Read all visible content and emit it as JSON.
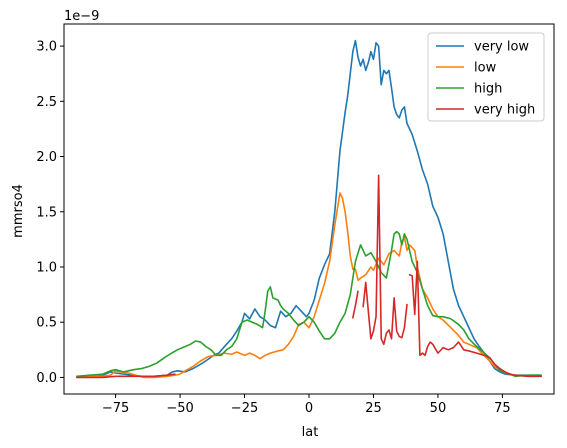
{
  "chart_data": {
    "type": "line",
    "xlabel": "lat",
    "ylabel": "mmrso4",
    "offset_text": "1e−9",
    "xlim": [
      -95,
      95
    ],
    "ylim": [
      -0.15,
      3.2
    ],
    "y_scale_factor": 1e-09,
    "xticks": [
      -75,
      -50,
      -25,
      0,
      25,
      50,
      75
    ],
    "xtick_labels": [
      "−75",
      "−50",
      "−25",
      "0",
      "25",
      "50",
      "75"
    ],
    "yticks": [
      0.0,
      0.5,
      1.0,
      1.5,
      2.0,
      2.5,
      3.0
    ],
    "ytick_labels": [
      "0.0",
      "0.5",
      "1.0",
      "1.5",
      "2.0",
      "2.5",
      "3.0"
    ],
    "grid": false,
    "legend_position": "top-right",
    "series": [
      {
        "name": "very low",
        "color": "#1f77b4",
        "points": [
          [
            -90,
            0.01
          ],
          [
            -85,
            0.01
          ],
          [
            -80,
            0.02
          ],
          [
            -77,
            0.05
          ],
          [
            -75,
            0.04
          ],
          [
            -72,
            0.03
          ],
          [
            -68,
            0.02
          ],
          [
            -65,
            0.01
          ],
          [
            -60,
            0.01
          ],
          [
            -55,
            0.02
          ],
          [
            -53,
            0.05
          ],
          [
            -51,
            0.06
          ],
          [
            -48,
            0.05
          ],
          [
            -45,
            0.08
          ],
          [
            -42,
            0.12
          ],
          [
            -40,
            0.15
          ],
          [
            -37,
            0.2
          ],
          [
            -35,
            0.22
          ],
          [
            -32,
            0.3
          ],
          [
            -30,
            0.35
          ],
          [
            -28,
            0.42
          ],
          [
            -26,
            0.5
          ],
          [
            -25,
            0.58
          ],
          [
            -23,
            0.53
          ],
          [
            -21,
            0.62
          ],
          [
            -19,
            0.55
          ],
          [
            -17,
            0.52
          ],
          [
            -15,
            0.47
          ],
          [
            -13,
            0.45
          ],
          [
            -11,
            0.6
          ],
          [
            -9,
            0.55
          ],
          [
            -7,
            0.58
          ],
          [
            -5,
            0.65
          ],
          [
            -3,
            0.6
          ],
          [
            -1,
            0.55
          ],
          [
            0,
            0.58
          ],
          [
            2,
            0.7
          ],
          [
            4,
            0.9
          ],
          [
            6,
            1.02
          ],
          [
            8,
            1.12
          ],
          [
            10,
            1.5
          ],
          [
            12,
            2.05
          ],
          [
            14,
            2.4
          ],
          [
            15,
            2.55
          ],
          [
            16,
            2.75
          ],
          [
            17,
            2.95
          ],
          [
            18,
            3.05
          ],
          [
            19,
            2.9
          ],
          [
            20,
            2.82
          ],
          [
            21,
            2.88
          ],
          [
            22,
            2.78
          ],
          [
            23,
            2.85
          ],
          [
            24,
            2.95
          ],
          [
            25,
            2.88
          ],
          [
            26,
            3.03
          ],
          [
            27,
            3.0
          ],
          [
            28,
            2.65
          ],
          [
            29,
            2.78
          ],
          [
            30,
            2.75
          ],
          [
            31,
            2.78
          ],
          [
            32,
            2.62
          ],
          [
            33,
            2.45
          ],
          [
            34,
            2.38
          ],
          [
            35,
            2.35
          ],
          [
            36,
            2.42
          ],
          [
            37,
            2.45
          ],
          [
            38,
            2.3
          ],
          [
            40,
            2.2
          ],
          [
            42,
            2.05
          ],
          [
            44,
            1.88
          ],
          [
            46,
            1.75
          ],
          [
            48,
            1.55
          ],
          [
            50,
            1.45
          ],
          [
            52,
            1.3
          ],
          [
            54,
            1.05
          ],
          [
            56,
            0.8
          ],
          [
            58,
            0.65
          ],
          [
            60,
            0.55
          ],
          [
            62,
            0.45
          ],
          [
            64,
            0.35
          ],
          [
            66,
            0.28
          ],
          [
            68,
            0.22
          ],
          [
            70,
            0.15
          ],
          [
            72,
            0.08
          ],
          [
            74,
            0.05
          ],
          [
            76,
            0.03
          ],
          [
            80,
            0.02
          ],
          [
            85,
            0.02
          ],
          [
            90,
            0.02
          ]
        ]
      },
      {
        "name": "low",
        "color": "#ff7f0e",
        "points": [
          [
            -90,
            0.0
          ],
          [
            -85,
            0.01
          ],
          [
            -80,
            0.01
          ],
          [
            -77,
            0.02
          ],
          [
            -75,
            0.06
          ],
          [
            -73,
            0.05
          ],
          [
            -70,
            0.04
          ],
          [
            -67,
            0.02
          ],
          [
            -64,
            0.0
          ],
          [
            -60,
            0.0
          ],
          [
            -55,
            0.01
          ],
          [
            -52,
            0.02
          ],
          [
            -50,
            0.03
          ],
          [
            -48,
            0.06
          ],
          [
            -45,
            0.1
          ],
          [
            -42,
            0.15
          ],
          [
            -39,
            0.19
          ],
          [
            -36,
            0.2
          ],
          [
            -33,
            0.22
          ],
          [
            -30,
            0.21
          ],
          [
            -28,
            0.23
          ],
          [
            -25,
            0.2
          ],
          [
            -23,
            0.22
          ],
          [
            -21,
            0.2
          ],
          [
            -19,
            0.17
          ],
          [
            -17,
            0.2
          ],
          [
            -15,
            0.22
          ],
          [
            -12,
            0.24
          ],
          [
            -10,
            0.25
          ],
          [
            -8,
            0.3
          ],
          [
            -6,
            0.37
          ],
          [
            -4,
            0.48
          ],
          [
            -2,
            0.5
          ],
          [
            0,
            0.45
          ],
          [
            2,
            0.55
          ],
          [
            4,
            0.7
          ],
          [
            6,
            0.85
          ],
          [
            8,
            1.05
          ],
          [
            10,
            1.38
          ],
          [
            12,
            1.67
          ],
          [
            13,
            1.62
          ],
          [
            14,
            1.5
          ],
          [
            15,
            1.32
          ],
          [
            16,
            1.1
          ],
          [
            17,
            0.98
          ],
          [
            18,
            0.98
          ],
          [
            19,
            0.88
          ],
          [
            20,
            0.9
          ],
          [
            22,
            0.93
          ],
          [
            24,
            1.0
          ],
          [
            25,
            0.97
          ],
          [
            27,
            1.08
          ],
          [
            29,
            1.02
          ],
          [
            31,
            1.12
          ],
          [
            33,
            1.15
          ],
          [
            35,
            1.1
          ],
          [
            36,
            1.22
          ],
          [
            37,
            1.27
          ],
          [
            38,
            1.15
          ],
          [
            39,
            1.2
          ],
          [
            41,
            1.15
          ],
          [
            42,
            1.0
          ],
          [
            44,
            0.8
          ],
          [
            46,
            0.72
          ],
          [
            48,
            0.62
          ],
          [
            50,
            0.55
          ],
          [
            52,
            0.52
          ],
          [
            55,
            0.45
          ],
          [
            58,
            0.38
          ],
          [
            60,
            0.32
          ],
          [
            62,
            0.3
          ],
          [
            65,
            0.27
          ],
          [
            67,
            0.22
          ],
          [
            70,
            0.15
          ],
          [
            72,
            0.1
          ],
          [
            74,
            0.07
          ],
          [
            76,
            0.04
          ],
          [
            80,
            0.02
          ],
          [
            85,
            0.01
          ],
          [
            90,
            0.01
          ]
        ]
      },
      {
        "name": "high",
        "color": "#2ca02c",
        "points": [
          [
            -90,
            0.01
          ],
          [
            -85,
            0.02
          ],
          [
            -80,
            0.03
          ],
          [
            -77,
            0.06
          ],
          [
            -75,
            0.07
          ],
          [
            -72,
            0.05
          ],
          [
            -68,
            0.07
          ],
          [
            -65,
            0.08
          ],
          [
            -62,
            0.1
          ],
          [
            -59,
            0.13
          ],
          [
            -56,
            0.18
          ],
          [
            -54,
            0.21
          ],
          [
            -51,
            0.25
          ],
          [
            -48,
            0.28
          ],
          [
            -46,
            0.3
          ],
          [
            -44,
            0.33
          ],
          [
            -42,
            0.32
          ],
          [
            -40,
            0.28
          ],
          [
            -38,
            0.25
          ],
          [
            -36,
            0.2
          ],
          [
            -34,
            0.2
          ],
          [
            -32,
            0.25
          ],
          [
            -30,
            0.28
          ],
          [
            -28,
            0.35
          ],
          [
            -26,
            0.5
          ],
          [
            -24,
            0.52
          ],
          [
            -22,
            0.5
          ],
          [
            -20,
            0.48
          ],
          [
            -18,
            0.45
          ],
          [
            -17,
            0.6
          ],
          [
            -16,
            0.78
          ],
          [
            -15,
            0.82
          ],
          [
            -14,
            0.72
          ],
          [
            -12,
            0.7
          ],
          [
            -11,
            0.65
          ],
          [
            -10,
            0.62
          ],
          [
            -8,
            0.58
          ],
          [
            -6,
            0.52
          ],
          [
            -4,
            0.47
          ],
          [
            -2,
            0.5
          ],
          [
            0,
            0.55
          ],
          [
            2,
            0.5
          ],
          [
            4,
            0.42
          ],
          [
            6,
            0.35
          ],
          [
            8,
            0.35
          ],
          [
            10,
            0.4
          ],
          [
            12,
            0.5
          ],
          [
            14,
            0.58
          ],
          [
            16,
            0.75
          ],
          [
            18,
            1.05
          ],
          [
            20,
            1.2
          ],
          [
            22,
            1.1
          ],
          [
            24,
            1.13
          ],
          [
            26,
            1.05
          ],
          [
            28,
            0.95
          ],
          [
            30,
            0.9
          ],
          [
            32,
            1.15
          ],
          [
            33,
            1.3
          ],
          [
            34,
            1.32
          ],
          [
            35,
            1.3
          ],
          [
            36,
            1.2
          ],
          [
            37,
            1.3
          ],
          [
            38,
            1.25
          ],
          [
            40,
            1.05
          ],
          [
            42,
            0.95
          ],
          [
            44,
            0.8
          ],
          [
            46,
            0.65
          ],
          [
            48,
            0.56
          ],
          [
            50,
            0.55
          ],
          [
            52,
            0.55
          ],
          [
            55,
            0.53
          ],
          [
            58,
            0.48
          ],
          [
            60,
            0.43
          ],
          [
            62,
            0.35
          ],
          [
            65,
            0.28
          ],
          [
            68,
            0.22
          ],
          [
            70,
            0.18
          ],
          [
            72,
            0.12
          ],
          [
            74,
            0.06
          ],
          [
            76,
            0.04
          ],
          [
            78,
            0.03
          ],
          [
            80,
            0.01
          ],
          [
            85,
            0.02
          ],
          [
            90,
            0.02
          ]
        ]
      },
      {
        "name": "very high",
        "color": "#d62728",
        "segments": [
          [
            [
              -90,
              0.0
            ],
            [
              -85,
              0.0
            ],
            [
              -80,
              0.0
            ],
            [
              -75,
              0.01
            ],
            [
              -70,
              0.01
            ],
            [
              -65,
              0.01
            ],
            [
              -60,
              0.01
            ],
            [
              -55,
              0.02
            ],
            [
              -52,
              0.03
            ]
          ],
          [
            [
              17,
              0.54
            ],
            [
              18,
              0.65
            ],
            [
              19,
              0.78
            ]
          ],
          [
            [
              21,
              0.64
            ],
            [
              22,
              0.86
            ],
            [
              23,
              0.6
            ],
            [
              24,
              0.35
            ],
            [
              25,
              0.42
            ],
            [
              26,
              0.55
            ],
            [
              27,
              1.83
            ],
            [
              28,
              0.35
            ],
            [
              29,
              0.3
            ],
            [
              30,
              0.4
            ],
            [
              31,
              0.43
            ],
            [
              32,
              0.35
            ],
            [
              33,
              0.72
            ],
            [
              34,
              0.42
            ],
            [
              35,
              0.37
            ],
            [
              36,
              0.36
            ],
            [
              37,
              0.45
            ],
            [
              38,
              0.66
            ]
          ],
          [
            [
              39,
              0.93
            ],
            [
              40,
              0.92
            ],
            [
              41,
              0.57
            ],
            [
              42,
              1.05
            ],
            [
              43,
              0.2
            ],
            [
              44,
              0.22
            ],
            [
              45,
              0.2
            ],
            [
              46,
              0.28
            ],
            [
              47,
              0.32
            ],
            [
              48,
              0.3
            ],
            [
              50,
              0.22
            ],
            [
              52,
              0.27
            ],
            [
              54,
              0.25
            ],
            [
              56,
              0.27
            ],
            [
              58,
              0.32
            ],
            [
              60,
              0.25
            ],
            [
              62,
              0.24
            ],
            [
              65,
              0.22
            ],
            [
              68,
              0.2
            ],
            [
              70,
              0.18
            ],
            [
              72,
              0.12
            ],
            [
              74,
              0.08
            ],
            [
              76,
              0.05
            ],
            [
              78,
              0.03
            ],
            [
              80,
              0.02
            ],
            [
              85,
              0.01
            ],
            [
              90,
              0.01
            ]
          ]
        ]
      }
    ]
  }
}
